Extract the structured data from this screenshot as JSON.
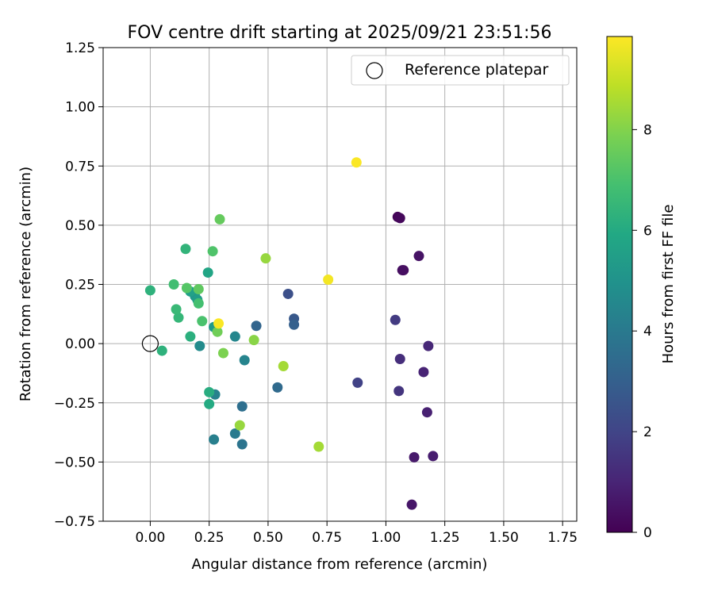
{
  "chart_data": {
    "type": "scatter",
    "title": "FOV centre drift starting at 2025/09/21 23:51:56",
    "xlabel": "Angular distance from reference (arcmin)",
    "ylabel": "Rotation from reference (arcmin)",
    "xlim": [
      -0.2,
      1.81
    ],
    "ylim": [
      -0.75,
      1.25
    ],
    "xticks": [
      0.0,
      0.25,
      0.5,
      0.75,
      1.0,
      1.25,
      1.5,
      1.75
    ],
    "xtick_labels": [
      "0.00",
      "0.25",
      "0.50",
      "0.75",
      "1.00",
      "1.25",
      "1.50",
      "1.75"
    ],
    "yticks": [
      -0.75,
      -0.5,
      -0.25,
      0.0,
      0.25,
      0.5,
      0.75,
      1.0,
      1.25
    ],
    "ytick_labels": [
      "−0.75",
      "−0.50",
      "−0.25",
      "0.00",
      "0.25",
      "0.50",
      "0.75",
      "1.00",
      "1.25"
    ],
    "grid": true,
    "legend": {
      "label": "Reference platepar",
      "position": "top-right"
    },
    "reference_point": {
      "x": 0.0,
      "y": 0.0
    },
    "colorbar": {
      "label": "Hours from first FF file",
      "range": [
        0,
        9.85
      ],
      "ticks": [
        0,
        2,
        4,
        6,
        8
      ],
      "tick_labels": [
        "0",
        "2",
        "4",
        "6",
        "8"
      ],
      "colormap": "viridis"
    },
    "points": [
      {
        "x": 1.05,
        "y": 0.535,
        "h": 0.1
      },
      {
        "x": 1.06,
        "y": 0.53,
        "h": 0.2
      },
      {
        "x": 1.075,
        "y": 0.31,
        "h": 0.3
      },
      {
        "x": 1.07,
        "y": 0.31,
        "h": 0.4
      },
      {
        "x": 1.14,
        "y": 0.37,
        "h": 0.5
      },
      {
        "x": 1.11,
        "y": -0.68,
        "h": 0.6
      },
      {
        "x": 1.12,
        "y": -0.48,
        "h": 0.7
      },
      {
        "x": 1.2,
        "y": -0.475,
        "h": 0.8
      },
      {
        "x": 1.175,
        "y": -0.29,
        "h": 0.9
      },
      {
        "x": 1.16,
        "y": -0.12,
        "h": 1.0
      },
      {
        "x": 1.18,
        "y": -0.01,
        "h": 1.1
      },
      {
        "x": 1.06,
        "y": -0.065,
        "h": 1.3
      },
      {
        "x": 1.055,
        "y": -0.2,
        "h": 1.5
      },
      {
        "x": 1.04,
        "y": 0.1,
        "h": 1.7
      },
      {
        "x": 0.88,
        "y": -0.165,
        "h": 1.9
      },
      {
        "x": 0.585,
        "y": 0.21,
        "h": 2.4
      },
      {
        "x": 0.61,
        "y": 0.105,
        "h": 2.7
      },
      {
        "x": 0.61,
        "y": 0.08,
        "h": 3.0
      },
      {
        "x": 0.45,
        "y": 0.075,
        "h": 3.2
      },
      {
        "x": 0.54,
        "y": -0.185,
        "h": 3.4
      },
      {
        "x": 0.39,
        "y": -0.265,
        "h": 3.6
      },
      {
        "x": 0.39,
        "y": -0.425,
        "h": 3.8
      },
      {
        "x": 0.36,
        "y": -0.38,
        "h": 4.0
      },
      {
        "x": 0.27,
        "y": -0.405,
        "h": 4.2
      },
      {
        "x": 0.275,
        "y": -0.215,
        "h": 4.3
      },
      {
        "x": 0.4,
        "y": -0.07,
        "h": 4.4
      },
      {
        "x": 0.36,
        "y": 0.03,
        "h": 4.5
      },
      {
        "x": 0.21,
        "y": -0.01,
        "h": 4.7
      },
      {
        "x": 0.27,
        "y": 0.07,
        "h": 5.3
      },
      {
        "x": 0.19,
        "y": 0.2,
        "h": 5.2
      },
      {
        "x": 0.2,
        "y": 0.185,
        "h": 5.4
      },
      {
        "x": 0.17,
        "y": 0.22,
        "h": 5.6
      },
      {
        "x": 0.245,
        "y": 0.3,
        "h": 5.8
      },
      {
        "x": 0.25,
        "y": -0.255,
        "h": 6.0
      },
      {
        "x": 0.25,
        "y": -0.205,
        "h": 6.1
      },
      {
        "x": 0.17,
        "y": 0.03,
        "h": 6.2
      },
      {
        "x": 0.0,
        "y": 0.225,
        "h": 6.3
      },
      {
        "x": 0.05,
        "y": -0.03,
        "h": 6.3
      },
      {
        "x": 0.15,
        "y": 0.4,
        "h": 6.4
      },
      {
        "x": 0.12,
        "y": 0.11,
        "h": 6.5
      },
      {
        "x": 0.11,
        "y": 0.145,
        "h": 6.6
      },
      {
        "x": 0.1,
        "y": 0.25,
        "h": 6.8
      },
      {
        "x": 0.205,
        "y": 0.17,
        "h": 6.9
      },
      {
        "x": 0.22,
        "y": 0.095,
        "h": 7.0
      },
      {
        "x": 0.265,
        "y": 0.39,
        "h": 7.1
      },
      {
        "x": 0.155,
        "y": 0.235,
        "h": 7.2
      },
      {
        "x": 0.205,
        "y": 0.23,
        "h": 7.4
      },
      {
        "x": 0.295,
        "y": 0.525,
        "h": 7.5
      },
      {
        "x": 0.285,
        "y": 0.05,
        "h": 7.7
      },
      {
        "x": 0.31,
        "y": -0.04,
        "h": 7.9
      },
      {
        "x": 0.44,
        "y": 0.015,
        "h": 8.1
      },
      {
        "x": 0.38,
        "y": -0.345,
        "h": 8.3
      },
      {
        "x": 0.49,
        "y": 0.36,
        "h": 8.3
      },
      {
        "x": 0.565,
        "y": -0.095,
        "h": 8.5
      },
      {
        "x": 0.715,
        "y": -0.435,
        "h": 8.5
      },
      {
        "x": 0.29,
        "y": 0.085,
        "h": 9.8
      },
      {
        "x": 0.755,
        "y": 0.27,
        "h": 9.7
      },
      {
        "x": 0.875,
        "y": 0.765,
        "h": 9.8
      }
    ]
  }
}
